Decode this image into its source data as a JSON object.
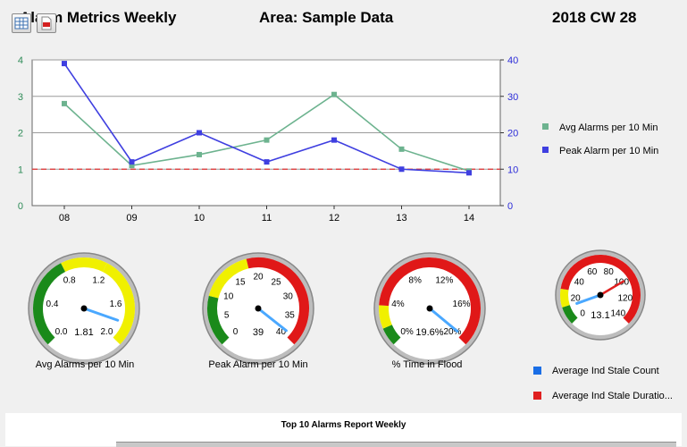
{
  "header": {
    "title": "Alarm Metrics Weekly",
    "area": "Area: Sample Data",
    "week": "2018 CW 28"
  },
  "toolbar": {
    "export_excel_icon": "spreadsheet-icon",
    "export_pdf_icon": "pdf-icon"
  },
  "chart_data": {
    "type": "line",
    "categories": [
      "08",
      "09",
      "10",
      "11",
      "12",
      "13",
      "14"
    ],
    "series": [
      {
        "name": "Avg Alarms per 10 Min",
        "axis": "left",
        "color": "#6db38f",
        "values": [
          2.8,
          1.1,
          1.4,
          1.8,
          3.05,
          1.55,
          0.95
        ]
      },
      {
        "name": "Peak Alarm per 10 Min",
        "axis": "right",
        "color": "#3f3fe0",
        "values": [
          39,
          12,
          20,
          12,
          18,
          10,
          9
        ]
      }
    ],
    "left_axis": {
      "ticks": [
        "0",
        "1",
        "2",
        "3",
        "4"
      ],
      "ylim": [
        0,
        4
      ],
      "color": "#2e8b57"
    },
    "right_axis": {
      "ticks": [
        "0",
        "10",
        "20",
        "30",
        "40"
      ],
      "ylim": [
        0,
        40
      ],
      "color": "#2b2bd8"
    },
    "threshold": {
      "value": 1,
      "color": "#e03030"
    }
  },
  "gauges": [
    {
      "label": "Avg Alarms per 10 Min",
      "ticks": [
        "0.0",
        "0.4",
        "0.8",
        "1.2",
        "1.6",
        "2.0"
      ],
      "value_text": "1.81",
      "value": 1.81,
      "min": 0,
      "max": 2.0
    },
    {
      "label": "Peak Alarm per 10 Min",
      "ticks": [
        "0",
        "5",
        "10",
        "15",
        "20",
        "25",
        "30",
        "35",
        "40"
      ],
      "value_text": "39",
      "value": 39,
      "min": 0,
      "max": 40
    },
    {
      "label": "% Time in Flood",
      "ticks": [
        "0%",
        "4%",
        "8%",
        "12%",
        "16%",
        "20%"
      ],
      "value_text": "19.6%",
      "value": 19.6,
      "min": 0,
      "max": 20
    },
    {
      "label": "",
      "ticks": [
        "0",
        "20",
        "40",
        "60",
        "80",
        "100",
        "120",
        "140"
      ],
      "value_text": "13.1",
      "value": 13.1,
      "min": 0,
      "max": 140
    }
  ],
  "gauge4_legend": [
    {
      "label": "Average Ind Stale Count",
      "color": "#1a6ee6"
    },
    {
      "label": "Average Ind Stale Duratio...",
      "color": "#e02020"
    }
  ],
  "report": {
    "title": "Top 10 Alarms Report Weekly"
  }
}
